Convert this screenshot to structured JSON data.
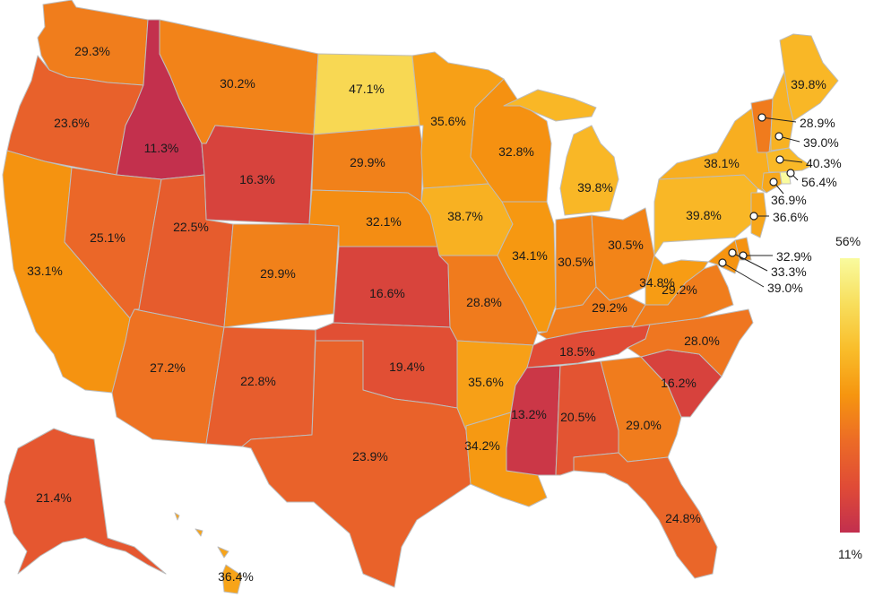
{
  "legend": {
    "max_label": "56%",
    "min_label": "11%",
    "min": 11,
    "max": 56,
    "colors": [
      "#c22f4e",
      "#e04b36",
      "#ec6b26",
      "#f6950f",
      "#f9bd2a",
      "#f8de5c",
      "#f9fb9e"
    ]
  },
  "states": [
    {
      "id": "WA",
      "label": "29.3%",
      "value": 29.3
    },
    {
      "id": "OR",
      "label": "23.6%",
      "value": 23.6
    },
    {
      "id": "CA",
      "label": "33.1%",
      "value": 33.1
    },
    {
      "id": "ID",
      "label": "11.3%",
      "value": 11.3
    },
    {
      "id": "NV",
      "label": "25.1%",
      "value": 25.1
    },
    {
      "id": "MT",
      "label": "30.2%",
      "value": 30.2
    },
    {
      "id": "WY",
      "label": "16.3%",
      "value": 16.3
    },
    {
      "id": "UT",
      "label": "22.5%",
      "value": 22.5
    },
    {
      "id": "AZ",
      "label": "27.2%",
      "value": 27.2
    },
    {
      "id": "CO",
      "label": "29.9%",
      "value": 29.9
    },
    {
      "id": "NM",
      "label": "22.8%",
      "value": 22.8
    },
    {
      "id": "ND",
      "label": "47.1%",
      "value": 47.1
    },
    {
      "id": "SD",
      "label": "29.9%",
      "value": 29.9
    },
    {
      "id": "NE",
      "label": "32.1%",
      "value": 32.1
    },
    {
      "id": "KS",
      "label": "16.6%",
      "value": 16.6
    },
    {
      "id": "OK",
      "label": "19.4%",
      "value": 19.4
    },
    {
      "id": "TX",
      "label": "23.9%",
      "value": 23.9
    },
    {
      "id": "MN",
      "label": "35.6%",
      "value": 35.6
    },
    {
      "id": "IA",
      "label": "38.7%",
      "value": 38.7
    },
    {
      "id": "MO",
      "label": "28.8%",
      "value": 28.8
    },
    {
      "id": "AR",
      "label": "35.6%",
      "value": 35.6
    },
    {
      "id": "LA",
      "label": "34.2%",
      "value": 34.2
    },
    {
      "id": "WI",
      "label": "32.8%",
      "value": 32.8
    },
    {
      "id": "IL",
      "label": "34.1%",
      "value": 34.1
    },
    {
      "id": "MI",
      "label": "39.8%",
      "value": 39.8
    },
    {
      "id": "IN",
      "label": "30.5%",
      "value": 30.5
    },
    {
      "id": "OH",
      "label": "30.5%",
      "value": 30.5
    },
    {
      "id": "KY",
      "label": "29.2%",
      "value": 29.2
    },
    {
      "id": "TN",
      "label": "18.5%",
      "value": 18.5
    },
    {
      "id": "MS",
      "label": "13.2%",
      "value": 13.2
    },
    {
      "id": "AL",
      "label": "20.5%",
      "value": 20.5
    },
    {
      "id": "GA",
      "label": "29.0%",
      "value": 29.0
    },
    {
      "id": "FL",
      "label": "24.8%",
      "value": 24.8
    },
    {
      "id": "SC",
      "label": "16.2%",
      "value": 16.2
    },
    {
      "id": "NC",
      "label": "28.0%",
      "value": 28.0
    },
    {
      "id": "VA",
      "label": "29.2%",
      "value": 29.2
    },
    {
      "id": "WV",
      "label": "34.8%",
      "value": 34.8
    },
    {
      "id": "PA",
      "label": "39.8%",
      "value": 39.8
    },
    {
      "id": "NY",
      "label": "38.1%",
      "value": 38.1
    },
    {
      "id": "ME",
      "label": "39.8%",
      "value": 39.8
    },
    {
      "id": "VT",
      "label": "28.9%",
      "value": 28.9
    },
    {
      "id": "NH",
      "label": "39.0%",
      "value": 39.0
    },
    {
      "id": "MA",
      "label": "40.3%",
      "value": 40.3
    },
    {
      "id": "RI",
      "label": "56.4%",
      "value": 56.4
    },
    {
      "id": "CT",
      "label": "36.9%",
      "value": 36.9
    },
    {
      "id": "NJ",
      "label": "36.6%",
      "value": 36.6
    },
    {
      "id": "DE",
      "label": "32.9%",
      "value": 32.9
    },
    {
      "id": "MD",
      "label": "33.3%",
      "value": 33.3
    },
    {
      "id": "DC",
      "label": "39.0%",
      "value": 39.0
    },
    {
      "id": "AK",
      "label": "21.4%",
      "value": 21.4
    },
    {
      "id": "HI",
      "label": "36.4%",
      "value": 36.4
    }
  ]
}
